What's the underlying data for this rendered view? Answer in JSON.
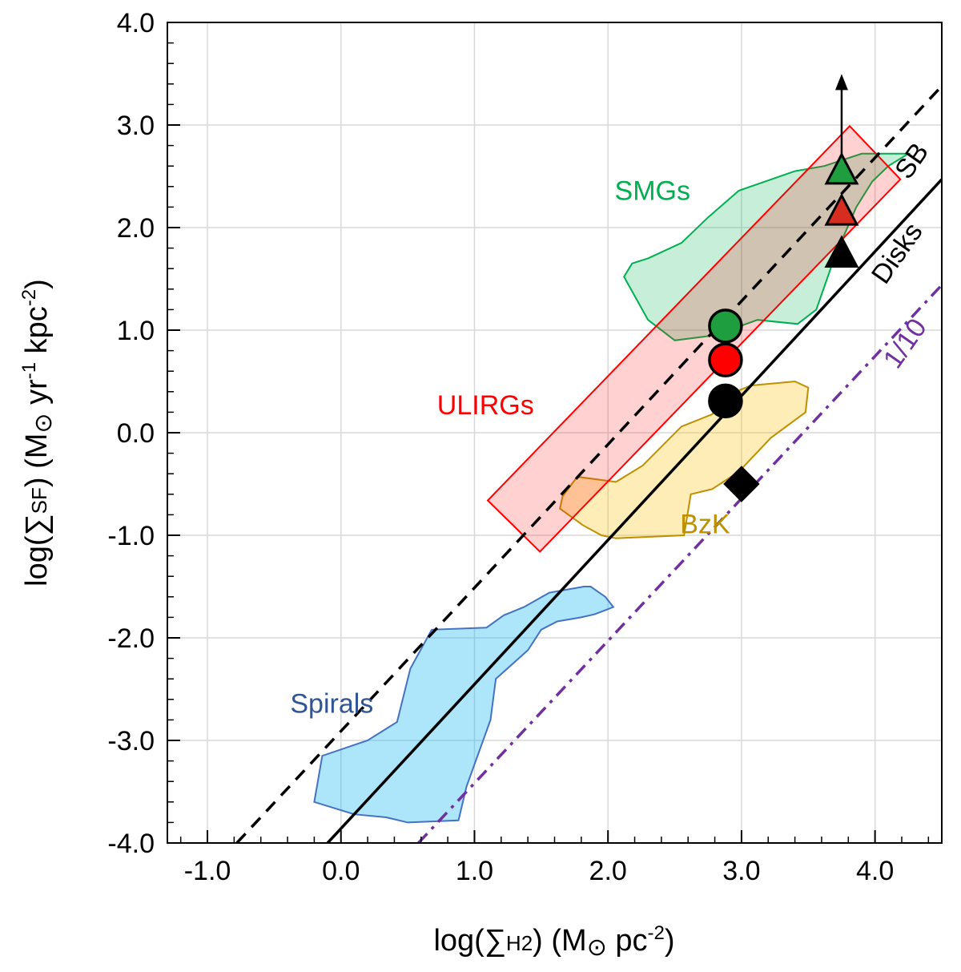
{
  "chart_data": {
    "type": "scatter",
    "title": "",
    "xlabel": {
      "pre": "log(∑",
      "sub": "H2",
      "mid": ") (M",
      "sun": "⊙",
      "post": " pc",
      "sup": "-2",
      "close": ")"
    },
    "ylabel": {
      "pre": "log(∑",
      "sub": "SF",
      "mid": ") (M",
      "sun": "⊙",
      "mid2": " yr",
      "sup1": "-1",
      "mid3": " kpc",
      "sup2": "-2",
      "close": ")"
    },
    "xlim": [
      -1.3,
      4.5
    ],
    "ylim": [
      -4.0,
      4.0
    ],
    "x_ticks": [
      -1.0,
      0.0,
      1.0,
      2.0,
      3.0,
      4.0
    ],
    "x_tick_labels": [
      "-1.0",
      "0.0",
      "1.0",
      "2.0",
      "3.0",
      "4.0"
    ],
    "y_ticks": [
      -4.0,
      -3.0,
      -2.0,
      -1.0,
      0.0,
      1.0,
      2.0,
      3.0,
      4.0
    ],
    "y_tick_labels": [
      "-4.0",
      "-3.0",
      "-2.0",
      "-1.0",
      "0.0",
      "1.0",
      "2.0",
      "3.0",
      "4.0"
    ],
    "x_minor_step": 0.2,
    "y_minor_step": 0.2,
    "grid": true,
    "lines": [
      {
        "label": "SB",
        "style": "dashed",
        "color": "#000000",
        "x": [
          -0.78,
          4.5
        ],
        "y": [
          -4.0,
          3.38
        ]
      },
      {
        "label": "Disks",
        "style": "solid",
        "color": "#000000",
        "x": [
          -0.1,
          4.5
        ],
        "y": [
          -4.0,
          2.47
        ]
      },
      {
        "label": "1/10",
        "style": "dashdot",
        "color": "#7030a0",
        "x": [
          0.58,
          4.5
        ],
        "y": [
          -4.0,
          1.44
        ]
      }
    ],
    "regions": [
      {
        "label": "Spirals",
        "color": "#00b0f0",
        "edge": "#4472c4",
        "opacity": 0.32,
        "polygon": [
          [
            0.34,
            -3.75
          ],
          [
            0.5,
            -3.8
          ],
          [
            0.88,
            -3.78
          ],
          [
            0.94,
            -3.45
          ],
          [
            1.12,
            -2.8
          ],
          [
            1.16,
            -2.4
          ],
          [
            1.4,
            -2.12
          ],
          [
            1.5,
            -1.92
          ],
          [
            1.62,
            -1.84
          ],
          [
            1.8,
            -1.8
          ],
          [
            1.9,
            -1.77
          ],
          [
            2.04,
            -1.7
          ],
          [
            1.98,
            -1.6
          ],
          [
            1.87,
            -1.5
          ],
          [
            1.82,
            -1.5
          ],
          [
            1.56,
            -1.56
          ],
          [
            1.37,
            -1.7
          ],
          [
            1.22,
            -1.78
          ],
          [
            1.09,
            -1.9
          ],
          [
            0.68,
            -1.92
          ],
          [
            0.52,
            -2.3
          ],
          [
            0.42,
            -2.82
          ],
          [
            0.2,
            -3.0
          ],
          [
            -0.14,
            -3.15
          ],
          [
            -0.2,
            -3.6
          ],
          [
            0.1,
            -3.72
          ]
        ]
      },
      {
        "label": "BzK",
        "color": "#ffc000",
        "edge": "#bf9000",
        "opacity": 0.28,
        "polygon": [
          [
            1.64,
            -0.74
          ],
          [
            1.81,
            -0.9
          ],
          [
            1.95,
            -1.0
          ],
          [
            2.06,
            -1.03
          ],
          [
            2.57,
            -1.0
          ],
          [
            2.62,
            -0.6
          ],
          [
            2.78,
            -0.55
          ],
          [
            2.98,
            -0.38
          ],
          [
            3.22,
            -0.05
          ],
          [
            3.48,
            0.2
          ],
          [
            3.5,
            0.44
          ],
          [
            3.4,
            0.5
          ],
          [
            3.07,
            0.46
          ],
          [
            2.92,
            0.38
          ],
          [
            2.78,
            0.18
          ],
          [
            2.55,
            0.06
          ],
          [
            2.26,
            -0.32
          ],
          [
            2.06,
            -0.48
          ],
          [
            1.77,
            -0.43
          ],
          [
            1.66,
            -0.62
          ]
        ]
      },
      {
        "label": "SMGs",
        "color": "#00b050",
        "edge": "#00b050",
        "opacity": 0.22,
        "polygon": [
          [
            2.12,
            1.52
          ],
          [
            2.3,
            1.1
          ],
          [
            2.5,
            0.9
          ],
          [
            2.8,
            0.95
          ],
          [
            3.12,
            1.1
          ],
          [
            3.42,
            1.06
          ],
          [
            3.56,
            1.2
          ],
          [
            3.7,
            1.72
          ],
          [
            3.86,
            2.2
          ],
          [
            3.98,
            2.45
          ],
          [
            4.1,
            2.6
          ],
          [
            4.25,
            2.72
          ],
          [
            3.9,
            2.72
          ],
          [
            3.62,
            2.6
          ],
          [
            3.4,
            2.55
          ],
          [
            2.98,
            2.36
          ],
          [
            2.75,
            2.1
          ],
          [
            2.55,
            1.85
          ],
          [
            2.3,
            1.7
          ],
          [
            2.18,
            1.65
          ]
        ]
      }
    ],
    "boxes": [
      {
        "label": "ULIRGs",
        "color": "#ff0000",
        "opacity": 0.18,
        "corners": [
          [
            1.1,
            -0.66
          ],
          [
            1.49,
            -1.16
          ],
          [
            4.19,
            2.47
          ],
          [
            3.81,
            2.99
          ]
        ]
      }
    ],
    "series": [
      {
        "marker": "circle",
        "color": "#000000",
        "x": [
          2.88
        ],
        "y": [
          0.31
        ]
      },
      {
        "marker": "circle",
        "color": "#ff0000",
        "x": [
          2.88
        ],
        "y": [
          0.71
        ]
      },
      {
        "marker": "circle",
        "color": "#1e9e3e",
        "x": [
          2.88
        ],
        "y": [
          1.04
        ]
      },
      {
        "marker": "triangle",
        "color": "#000000",
        "x": [
          3.75
        ],
        "y": [
          1.73
        ]
      },
      {
        "marker": "triangle",
        "color": "#d62d20",
        "x": [
          3.75
        ],
        "y": [
          2.14
        ]
      },
      {
        "marker": "triangle",
        "color": "#1e9e3e",
        "x": [
          3.75
        ],
        "y": [
          2.54
        ]
      },
      {
        "marker": "diamond",
        "color": "#000000",
        "x": [
          3.0
        ],
        "y": [
          -0.5
        ]
      }
    ],
    "arrows": [
      {
        "x": 3.75,
        "y_from": 2.54,
        "y_to": 3.45,
        "color": "#000000"
      }
    ],
    "annotations": [
      {
        "text": "SMGs",
        "color": "#00b050",
        "x": 2.05,
        "y": 2.27,
        "rotate": 0
      },
      {
        "text": "ULIRGs",
        "color": "#ff0000",
        "x": 0.72,
        "y": 0.18,
        "rotate": 0
      },
      {
        "text": "BzK",
        "color": "#bf9000",
        "x": 2.54,
        "y": -0.98,
        "rotate": 0
      },
      {
        "text": "Spirals",
        "color": "#2f5597",
        "x": -0.38,
        "y": -2.73,
        "rotate": 0
      },
      {
        "text": "SB",
        "color": "#000000",
        "x": 4.33,
        "y": 2.6,
        "rotate": -55
      },
      {
        "text": "Disks",
        "color": "#000000",
        "x": 4.22,
        "y": 1.7,
        "rotate": -55
      },
      {
        "text": "1/10",
        "color": "#7030a0",
        "x": 4.28,
        "y": 0.82,
        "rotate": -55
      }
    ]
  }
}
